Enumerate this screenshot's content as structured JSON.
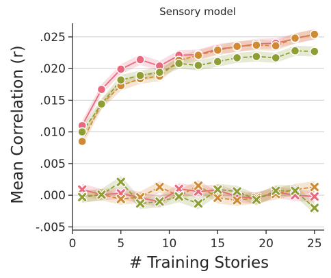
{
  "chart_data": {
    "type": "line",
    "title": "Sensory model",
    "xlabel": "# Training Stories",
    "ylabel": "Mean Correlation (r)",
    "xlim": [
      0,
      26
    ],
    "ylim": [
      -0.0055,
      0.0265
    ],
    "xticks": [
      0,
      5,
      10,
      15,
      20,
      25
    ],
    "xtick_labels": [
      "0",
      "5",
      "10",
      "15",
      "20",
      "25"
    ],
    "yticks": [
      -0.005,
      0.0,
      0.005,
      0.01,
      0.015,
      0.02,
      0.025
    ],
    "ytick_labels": [
      "-.005",
      ".000",
      ".005",
      ".010",
      ".015",
      ".020",
      ".025"
    ],
    "grid": "horizontal",
    "legend": "none",
    "x": [
      1,
      3,
      5,
      7,
      9,
      11,
      13,
      15,
      17,
      19,
      21,
      23,
      25
    ],
    "series": [
      {
        "color": "#e8697e",
        "marker": "circle",
        "linestyle": "solid",
        "values": [
          0.011,
          0.0167,
          0.0199,
          0.0214,
          0.0204,
          0.0221,
          0.0222,
          0.0231,
          0.0234,
          0.0239,
          0.024,
          0.0247,
          0.0254
        ],
        "band": 0.0008
      },
      {
        "color": "#d08a33",
        "marker": "circle",
        "linestyle": "dashed",
        "values": [
          0.0085,
          0.0144,
          0.0173,
          0.0184,
          0.0188,
          0.0213,
          0.0221,
          0.0229,
          0.0235,
          0.0237,
          0.0236,
          0.0248,
          0.0254
        ],
        "band": 0.0008
      },
      {
        "color": "#8f9d35",
        "marker": "circle",
        "linestyle": "dashed",
        "values": [
          0.01,
          0.0144,
          0.0182,
          0.0189,
          0.0194,
          0.0208,
          0.0205,
          0.0211,
          0.0217,
          0.0219,
          0.0217,
          0.0228,
          0.0227
        ],
        "band": 0.0008
      },
      {
        "color": "#e8697e",
        "marker": "x",
        "linestyle": "solid",
        "values": [
          0.0009,
          0.0001,
          0.0003,
          -0.0004,
          -0.001,
          0.001,
          0.0006,
          0.0008,
          -0.0002,
          -0.0005,
          0.0005,
          0.0,
          -0.0002
        ],
        "band": 0.0009
      },
      {
        "color": "#d08a33",
        "marker": "x",
        "linestyle": "dashed",
        "values": [
          -0.0002,
          0.0001,
          -0.0006,
          -0.0003,
          0.0013,
          -0.0001,
          0.0015,
          -0.0004,
          -0.0008,
          -0.0004,
          0.0002,
          0.0009,
          0.0013
        ],
        "band": 0.0009
      },
      {
        "color": "#8f9d35",
        "marker": "x",
        "linestyle": "dashed",
        "values": [
          -0.0003,
          0.0001,
          0.0021,
          -0.0013,
          -0.001,
          -0.0002,
          -0.0013,
          0.0009,
          0.0006,
          -0.0007,
          0.0007,
          0.0007,
          -0.002
        ],
        "band": 0.0009
      }
    ]
  }
}
